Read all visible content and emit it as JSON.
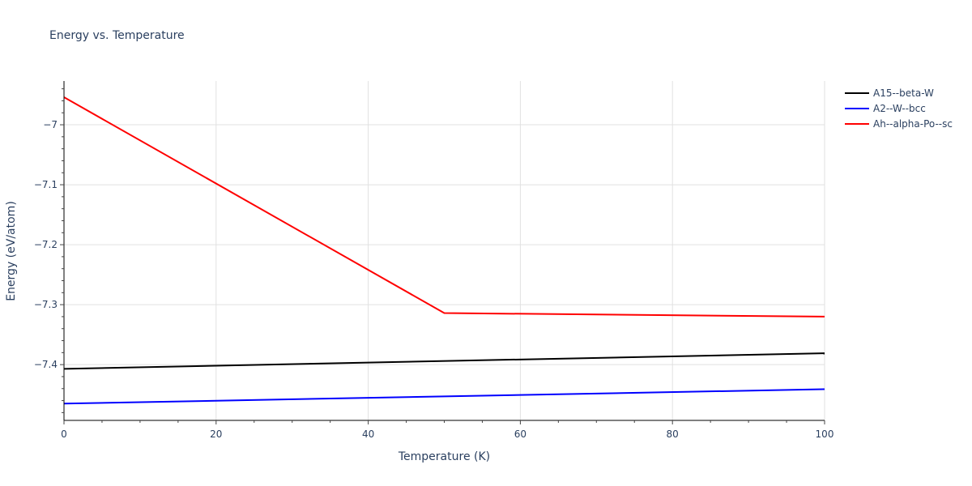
{
  "chart_data": {
    "type": "line",
    "title": "Energy vs. Temperature",
    "xlabel": "Temperature (K)",
    "ylabel": "Energy (eV/atom)",
    "xlim": [
      0,
      100
    ],
    "ylim": [
      -7.493,
      -6.927
    ],
    "x_ticks": [
      0,
      20,
      40,
      60,
      80,
      100
    ],
    "y_ticks": [
      -7.0,
      -7.1,
      -7.2,
      -7.3,
      -7.4
    ],
    "y_tick_labels": [
      "−7",
      "−7.1",
      "−7.2",
      "−7.3",
      "−7.4"
    ],
    "grid": true,
    "legend_position": "right",
    "series": [
      {
        "name": "A15--beta-W",
        "color": "#000000",
        "x": [
          0,
          100
        ],
        "values": [
          -7.407,
          -7.381
        ]
      },
      {
        "name": "A2--W--bcc",
        "color": "#0000ff",
        "x": [
          0,
          100
        ],
        "values": [
          -7.465,
          -7.441
        ]
      },
      {
        "name": "Ah--alpha-Po--sc",
        "color": "#ff0000",
        "x": [
          0,
          50,
          100
        ],
        "values": [
          -6.954,
          -7.314,
          -7.32
        ]
      }
    ]
  }
}
